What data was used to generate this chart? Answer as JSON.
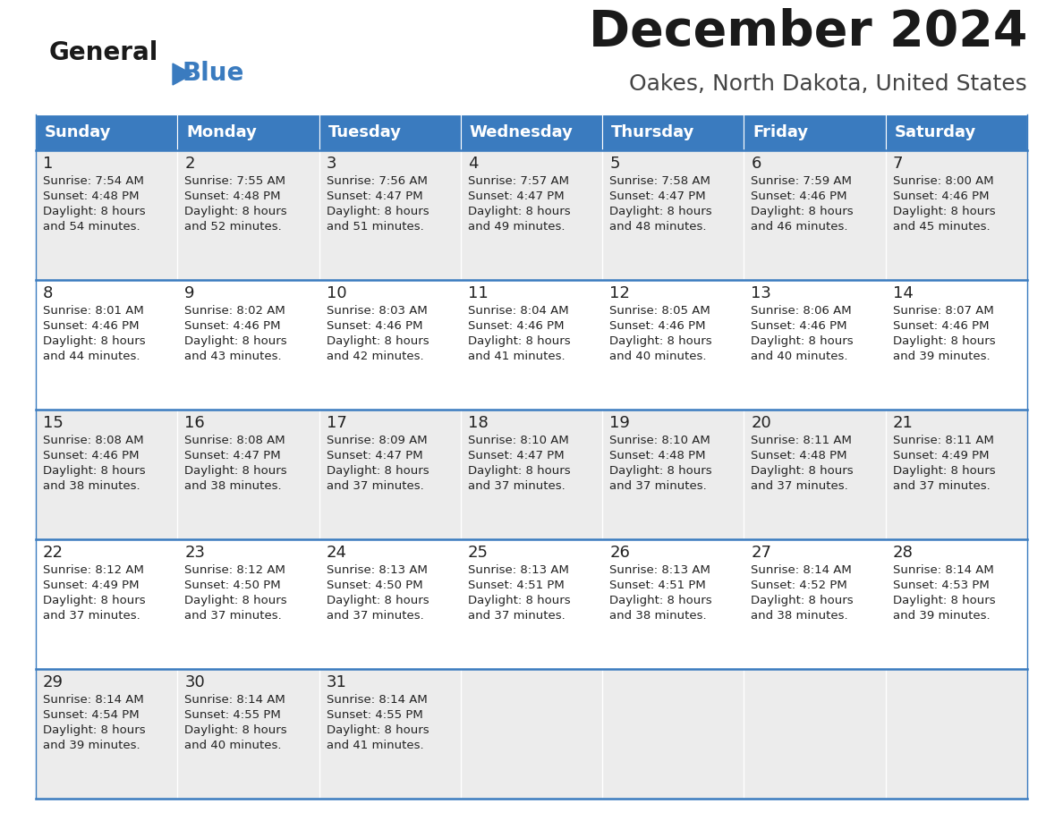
{
  "title": "December 2024",
  "subtitle": "Oakes, North Dakota, United States",
  "header_color": "#3a7bbf",
  "header_text_color": "#ffffff",
  "cell_bg_odd": "#ececec",
  "cell_bg_even": "#ffffff",
  "border_color": "#3a7bbf",
  "days_of_week": [
    "Sunday",
    "Monday",
    "Tuesday",
    "Wednesday",
    "Thursday",
    "Friday",
    "Saturday"
  ],
  "weeks": [
    [
      {
        "day": "1",
        "sunrise": "7:54 AM",
        "sunset": "4:48 PM",
        "daylight": "8 hours",
        "daylight2": "and 54 minutes."
      },
      {
        "day": "2",
        "sunrise": "7:55 AM",
        "sunset": "4:48 PM",
        "daylight": "8 hours",
        "daylight2": "and 52 minutes."
      },
      {
        "day": "3",
        "sunrise": "7:56 AM",
        "sunset": "4:47 PM",
        "daylight": "8 hours",
        "daylight2": "and 51 minutes."
      },
      {
        "day": "4",
        "sunrise": "7:57 AM",
        "sunset": "4:47 PM",
        "daylight": "8 hours",
        "daylight2": "and 49 minutes."
      },
      {
        "day": "5",
        "sunrise": "7:58 AM",
        "sunset": "4:47 PM",
        "daylight": "8 hours",
        "daylight2": "and 48 minutes."
      },
      {
        "day": "6",
        "sunrise": "7:59 AM",
        "sunset": "4:46 PM",
        "daylight": "8 hours",
        "daylight2": "and 46 minutes."
      },
      {
        "day": "7",
        "sunrise": "8:00 AM",
        "sunset": "4:46 PM",
        "daylight": "8 hours",
        "daylight2": "and 45 minutes."
      }
    ],
    [
      {
        "day": "8",
        "sunrise": "8:01 AM",
        "sunset": "4:46 PM",
        "daylight": "8 hours",
        "daylight2": "and 44 minutes."
      },
      {
        "day": "9",
        "sunrise": "8:02 AM",
        "sunset": "4:46 PM",
        "daylight": "8 hours",
        "daylight2": "and 43 minutes."
      },
      {
        "day": "10",
        "sunrise": "8:03 AM",
        "sunset": "4:46 PM",
        "daylight": "8 hours",
        "daylight2": "and 42 minutes."
      },
      {
        "day": "11",
        "sunrise": "8:04 AM",
        "sunset": "4:46 PM",
        "daylight": "8 hours",
        "daylight2": "and 41 minutes."
      },
      {
        "day": "12",
        "sunrise": "8:05 AM",
        "sunset": "4:46 PM",
        "daylight": "8 hours",
        "daylight2": "and 40 minutes."
      },
      {
        "day": "13",
        "sunrise": "8:06 AM",
        "sunset": "4:46 PM",
        "daylight": "8 hours",
        "daylight2": "and 40 minutes."
      },
      {
        "day": "14",
        "sunrise": "8:07 AM",
        "sunset": "4:46 PM",
        "daylight": "8 hours",
        "daylight2": "and 39 minutes."
      }
    ],
    [
      {
        "day": "15",
        "sunrise": "8:08 AM",
        "sunset": "4:46 PM",
        "daylight": "8 hours",
        "daylight2": "and 38 minutes."
      },
      {
        "day": "16",
        "sunrise": "8:08 AM",
        "sunset": "4:47 PM",
        "daylight": "8 hours",
        "daylight2": "and 38 minutes."
      },
      {
        "day": "17",
        "sunrise": "8:09 AM",
        "sunset": "4:47 PM",
        "daylight": "8 hours",
        "daylight2": "and 37 minutes."
      },
      {
        "day": "18",
        "sunrise": "8:10 AM",
        "sunset": "4:47 PM",
        "daylight": "8 hours",
        "daylight2": "and 37 minutes."
      },
      {
        "day": "19",
        "sunrise": "8:10 AM",
        "sunset": "4:48 PM",
        "daylight": "8 hours",
        "daylight2": "and 37 minutes."
      },
      {
        "day": "20",
        "sunrise": "8:11 AM",
        "sunset": "4:48 PM",
        "daylight": "8 hours",
        "daylight2": "and 37 minutes."
      },
      {
        "day": "21",
        "sunrise": "8:11 AM",
        "sunset": "4:49 PM",
        "daylight": "8 hours",
        "daylight2": "and 37 minutes."
      }
    ],
    [
      {
        "day": "22",
        "sunrise": "8:12 AM",
        "sunset": "4:49 PM",
        "daylight": "8 hours",
        "daylight2": "and 37 minutes."
      },
      {
        "day": "23",
        "sunrise": "8:12 AM",
        "sunset": "4:50 PM",
        "daylight": "8 hours",
        "daylight2": "and 37 minutes."
      },
      {
        "day": "24",
        "sunrise": "8:13 AM",
        "sunset": "4:50 PM",
        "daylight": "8 hours",
        "daylight2": "and 37 minutes."
      },
      {
        "day": "25",
        "sunrise": "8:13 AM",
        "sunset": "4:51 PM",
        "daylight": "8 hours",
        "daylight2": "and 37 minutes."
      },
      {
        "day": "26",
        "sunrise": "8:13 AM",
        "sunset": "4:51 PM",
        "daylight": "8 hours",
        "daylight2": "and 38 minutes."
      },
      {
        "day": "27",
        "sunrise": "8:14 AM",
        "sunset": "4:52 PM",
        "daylight": "8 hours",
        "daylight2": "and 38 minutes."
      },
      {
        "day": "28",
        "sunrise": "8:14 AM",
        "sunset": "4:53 PM",
        "daylight": "8 hours",
        "daylight2": "and 39 minutes."
      }
    ],
    [
      {
        "day": "29",
        "sunrise": "8:14 AM",
        "sunset": "4:54 PM",
        "daylight": "8 hours",
        "daylight2": "and 39 minutes."
      },
      {
        "day": "30",
        "sunrise": "8:14 AM",
        "sunset": "4:55 PM",
        "daylight": "8 hours",
        "daylight2": "and 40 minutes."
      },
      {
        "day": "31",
        "sunrise": "8:14 AM",
        "sunset": "4:55 PM",
        "daylight": "8 hours",
        "daylight2": "and 41 minutes."
      },
      null,
      null,
      null,
      null
    ]
  ]
}
